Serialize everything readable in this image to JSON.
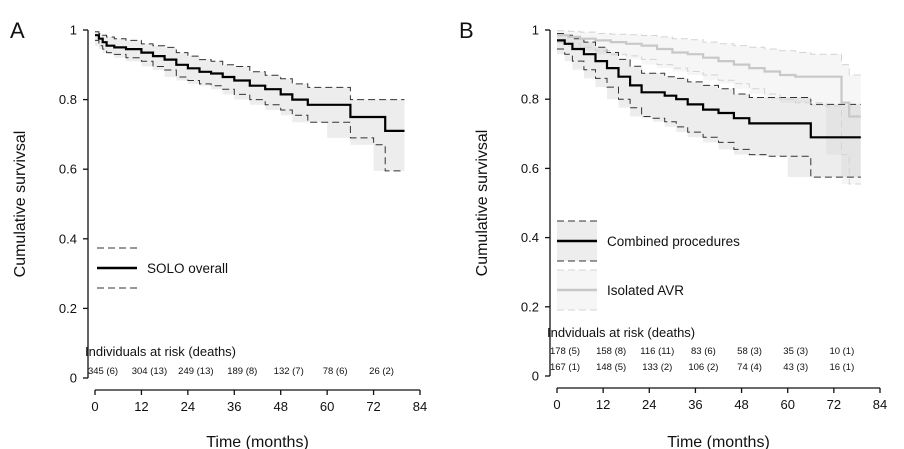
{
  "chart_data": [
    {
      "type": "line",
      "panel_label": "A",
      "xlabel": "Time (months)",
      "ylabel": "Cumulative survivsal",
      "xlim": [
        0,
        84
      ],
      "ylim": [
        0,
        1.0
      ],
      "x_ticks": [
        0,
        12,
        24,
        36,
        48,
        60,
        72,
        84
      ],
      "y_ticks": [
        0.0,
        0.2,
        0.4,
        0.6,
        0.8,
        1.0
      ],
      "legend": [
        "SOLO overall"
      ],
      "legend_position": "lower-left",
      "series": [
        {
          "name": "SOLO overall",
          "color": "#000000",
          "x": [
            0,
            1,
            2,
            3,
            5,
            8,
            12,
            15,
            18,
            21,
            24,
            27,
            30,
            33,
            36,
            40,
            44,
            48,
            51,
            55,
            60,
            66,
            72,
            75,
            80
          ],
          "y": [
            0.985,
            0.975,
            0.965,
            0.955,
            0.95,
            0.945,
            0.935,
            0.925,
            0.915,
            0.9,
            0.89,
            0.88,
            0.875,
            0.865,
            0.855,
            0.84,
            0.83,
            0.815,
            0.8,
            0.785,
            0.785,
            0.75,
            0.75,
            0.71,
            0.71
          ],
          "ci_upper": [
            0.995,
            0.99,
            0.985,
            0.98,
            0.975,
            0.97,
            0.96,
            0.955,
            0.95,
            0.935,
            0.925,
            0.915,
            0.91,
            0.9,
            0.895,
            0.88,
            0.87,
            0.86,
            0.845,
            0.835,
            0.835,
            0.8,
            0.8,
            0.8,
            0.8
          ],
          "ci_lower": [
            0.97,
            0.955,
            0.945,
            0.935,
            0.93,
            0.92,
            0.91,
            0.895,
            0.885,
            0.865,
            0.855,
            0.845,
            0.84,
            0.83,
            0.815,
            0.8,
            0.785,
            0.77,
            0.755,
            0.735,
            0.735,
            0.69,
            0.67,
            0.595,
            0.595
          ]
        }
      ],
      "risk_table": {
        "title": "Individuals at risk (deaths)",
        "rows": [
          {
            "x": [
              0,
              12,
              24,
              36,
              48,
              60,
              72
            ],
            "labels": [
              "345 (6)",
              "304 (13)",
              "249 (13)",
              "189 (8)",
              "132 (7)",
              "78 (6)",
              "26 (2)"
            ],
            "color": "#000000"
          }
        ]
      }
    },
    {
      "type": "line",
      "panel_label": "B",
      "xlabel": "Time (months)",
      "ylabel": "Cumulative survivsal",
      "xlim": [
        0,
        84
      ],
      "ylim": [
        0,
        1.0
      ],
      "x_ticks": [
        0,
        12,
        24,
        36,
        48,
        60,
        72,
        84
      ],
      "y_ticks": [
        0.0,
        0.2,
        0.4,
        0.6,
        0.8,
        1.0
      ],
      "legend": [
        "Combined procedures",
        "Isolated AVR"
      ],
      "legend_position": "lower-left",
      "series": [
        {
          "name": "Combined procedures",
          "color": "#000000",
          "x": [
            0,
            2,
            4,
            7,
            10,
            13,
            16,
            19,
            22,
            25,
            28,
            31,
            34,
            38,
            42,
            46,
            50,
            55,
            60,
            66,
            70,
            75,
            79
          ],
          "y": [
            0.97,
            0.96,
            0.945,
            0.93,
            0.91,
            0.89,
            0.865,
            0.84,
            0.82,
            0.82,
            0.81,
            0.8,
            0.785,
            0.77,
            0.76,
            0.745,
            0.73,
            0.73,
            0.73,
            0.69,
            0.69,
            0.69,
            0.69
          ],
          "ci_upper": [
            0.99,
            0.985,
            0.975,
            0.965,
            0.95,
            0.935,
            0.915,
            0.895,
            0.875,
            0.875,
            0.865,
            0.86,
            0.85,
            0.84,
            0.83,
            0.815,
            0.805,
            0.805,
            0.805,
            0.785,
            0.785,
            0.785,
            0.785
          ],
          "ci_lower": [
            0.945,
            0.93,
            0.91,
            0.885,
            0.86,
            0.835,
            0.8,
            0.775,
            0.75,
            0.745,
            0.735,
            0.72,
            0.705,
            0.69,
            0.675,
            0.655,
            0.64,
            0.635,
            0.635,
            0.575,
            0.575,
            0.575,
            0.575
          ]
        },
        {
          "name": "Isolated AVR",
          "color": "#c8c8c8",
          "x": [
            0,
            3,
            6,
            10,
            14,
            18,
            22,
            26,
            30,
            34,
            38,
            42,
            46,
            50,
            54,
            58,
            62,
            66,
            70,
            74,
            76,
            79
          ],
          "y": [
            0.985,
            0.98,
            0.975,
            0.97,
            0.965,
            0.96,
            0.955,
            0.945,
            0.935,
            0.93,
            0.92,
            0.91,
            0.9,
            0.89,
            0.88,
            0.87,
            0.865,
            0.865,
            0.865,
            0.79,
            0.75,
            0.75
          ],
          "ci_upper": [
            0.998,
            0.996,
            0.994,
            0.99,
            0.988,
            0.986,
            0.984,
            0.98,
            0.975,
            0.972,
            0.965,
            0.96,
            0.955,
            0.95,
            0.945,
            0.94,
            0.935,
            0.93,
            0.93,
            0.9,
            0.87,
            0.87
          ],
          "ci_lower": [
            0.965,
            0.96,
            0.95,
            0.94,
            0.93,
            0.925,
            0.915,
            0.9,
            0.89,
            0.88,
            0.87,
            0.855,
            0.845,
            0.83,
            0.815,
            0.8,
            0.79,
            0.79,
            0.78,
            0.64,
            0.555,
            0.555
          ]
        }
      ],
      "risk_table": {
        "title": "Indviduals at risk (deaths)",
        "rows": [
          {
            "x": [
              0,
              12,
              24,
              36,
              48,
              60,
              72
            ],
            "labels": [
              "178 (5)",
              "158 (8)",
              "116 (11)",
              "83 (6)",
              "58 (3)",
              "35 (3)",
              "10 (1)"
            ],
            "color": "#000000"
          },
          {
            "x": [
              0,
              12,
              24,
              36,
              48,
              60,
              72
            ],
            "labels": [
              "167 (1)",
              "148 (5)",
              "133 (2)",
              "106 (2)",
              "74 (4)",
              "43 (3)",
              "16 (1)"
            ],
            "color": "#9a9a9a"
          }
        ]
      }
    }
  ]
}
